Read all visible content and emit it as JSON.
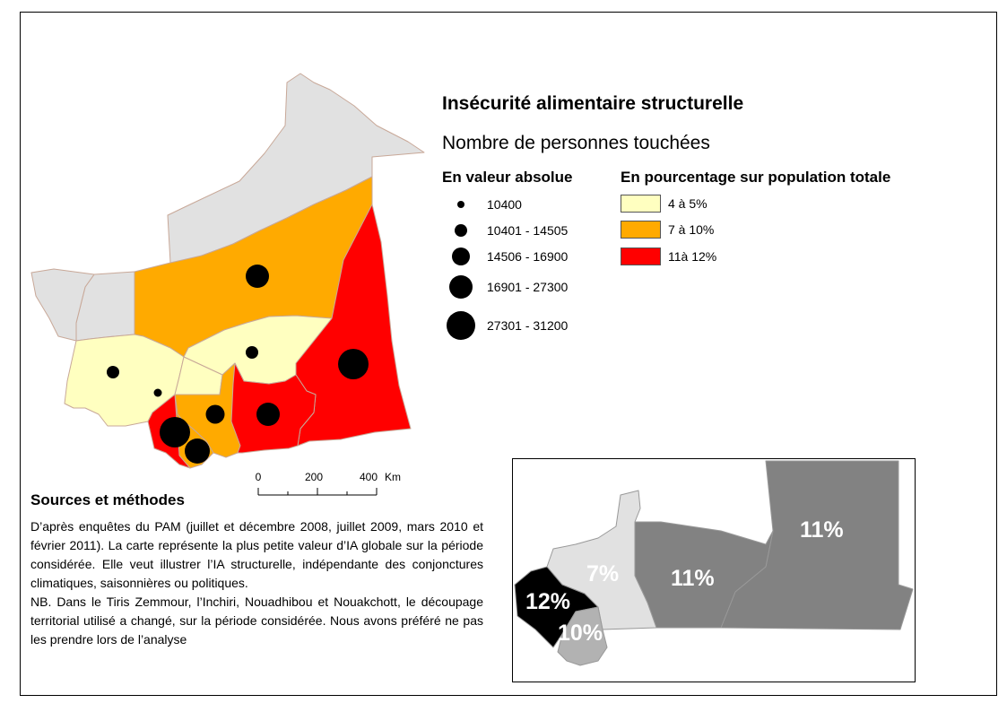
{
  "title": "Insécurité alimentaire structurelle",
  "subtitle": "Nombre de personnes touchées",
  "legend_absolute": {
    "heading": "En valeur absolue",
    "items": [
      {
        "label": "10400"
      },
      {
        "label": "10401 - 14505"
      },
      {
        "label": "14506 - 16900"
      },
      {
        "label": "16901 - 27300"
      },
      {
        "label": "27301 - 31200"
      }
    ]
  },
  "legend_percent": {
    "heading": "En pourcentage sur population totale",
    "items": [
      {
        "label": "4 à 5%",
        "color": "#ffffc0"
      },
      {
        "label": "7 à 10%",
        "color": "#ffaa00"
      },
      {
        "label": "11à 12%",
        "color": "#ff0000"
      }
    ]
  },
  "colors": {
    "no_data": "#e1e1e1",
    "border": "#c8a898",
    "symbol": "#000000",
    "inset_light": "#e1e1e1",
    "inset_mid": "#b2b2b2",
    "inset_dark": "#828282",
    "inset_black": "#000000"
  },
  "scale_bar": {
    "ticks": [
      "0",
      "200",
      "400"
    ],
    "unit": "Km"
  },
  "sources": {
    "title": "Sources et méthodes",
    "paragraph1": "D’après enquêtes du PAM (juillet et décembre 2008, juillet 2009, mars 2010 et février 2011). La carte représente la plus petite valeur d’IA globale sur la période considérée. Elle veut illustrer l’IA structurelle, indépendante des conjonctures climatiques, saisonnières ou politiques.",
    "paragraph2": "NB. Dans le Tiris Zemmour, l’Inchiri, Nouadhibou et Nouakchott, le découpage territorial utilisé a changé, sur la période considérée. Nous avons préféré ne pas les prendre lors de l’analyse"
  },
  "inset": {
    "labels": [
      "11%",
      "11%",
      "7%",
      "12%",
      "10%"
    ]
  }
}
